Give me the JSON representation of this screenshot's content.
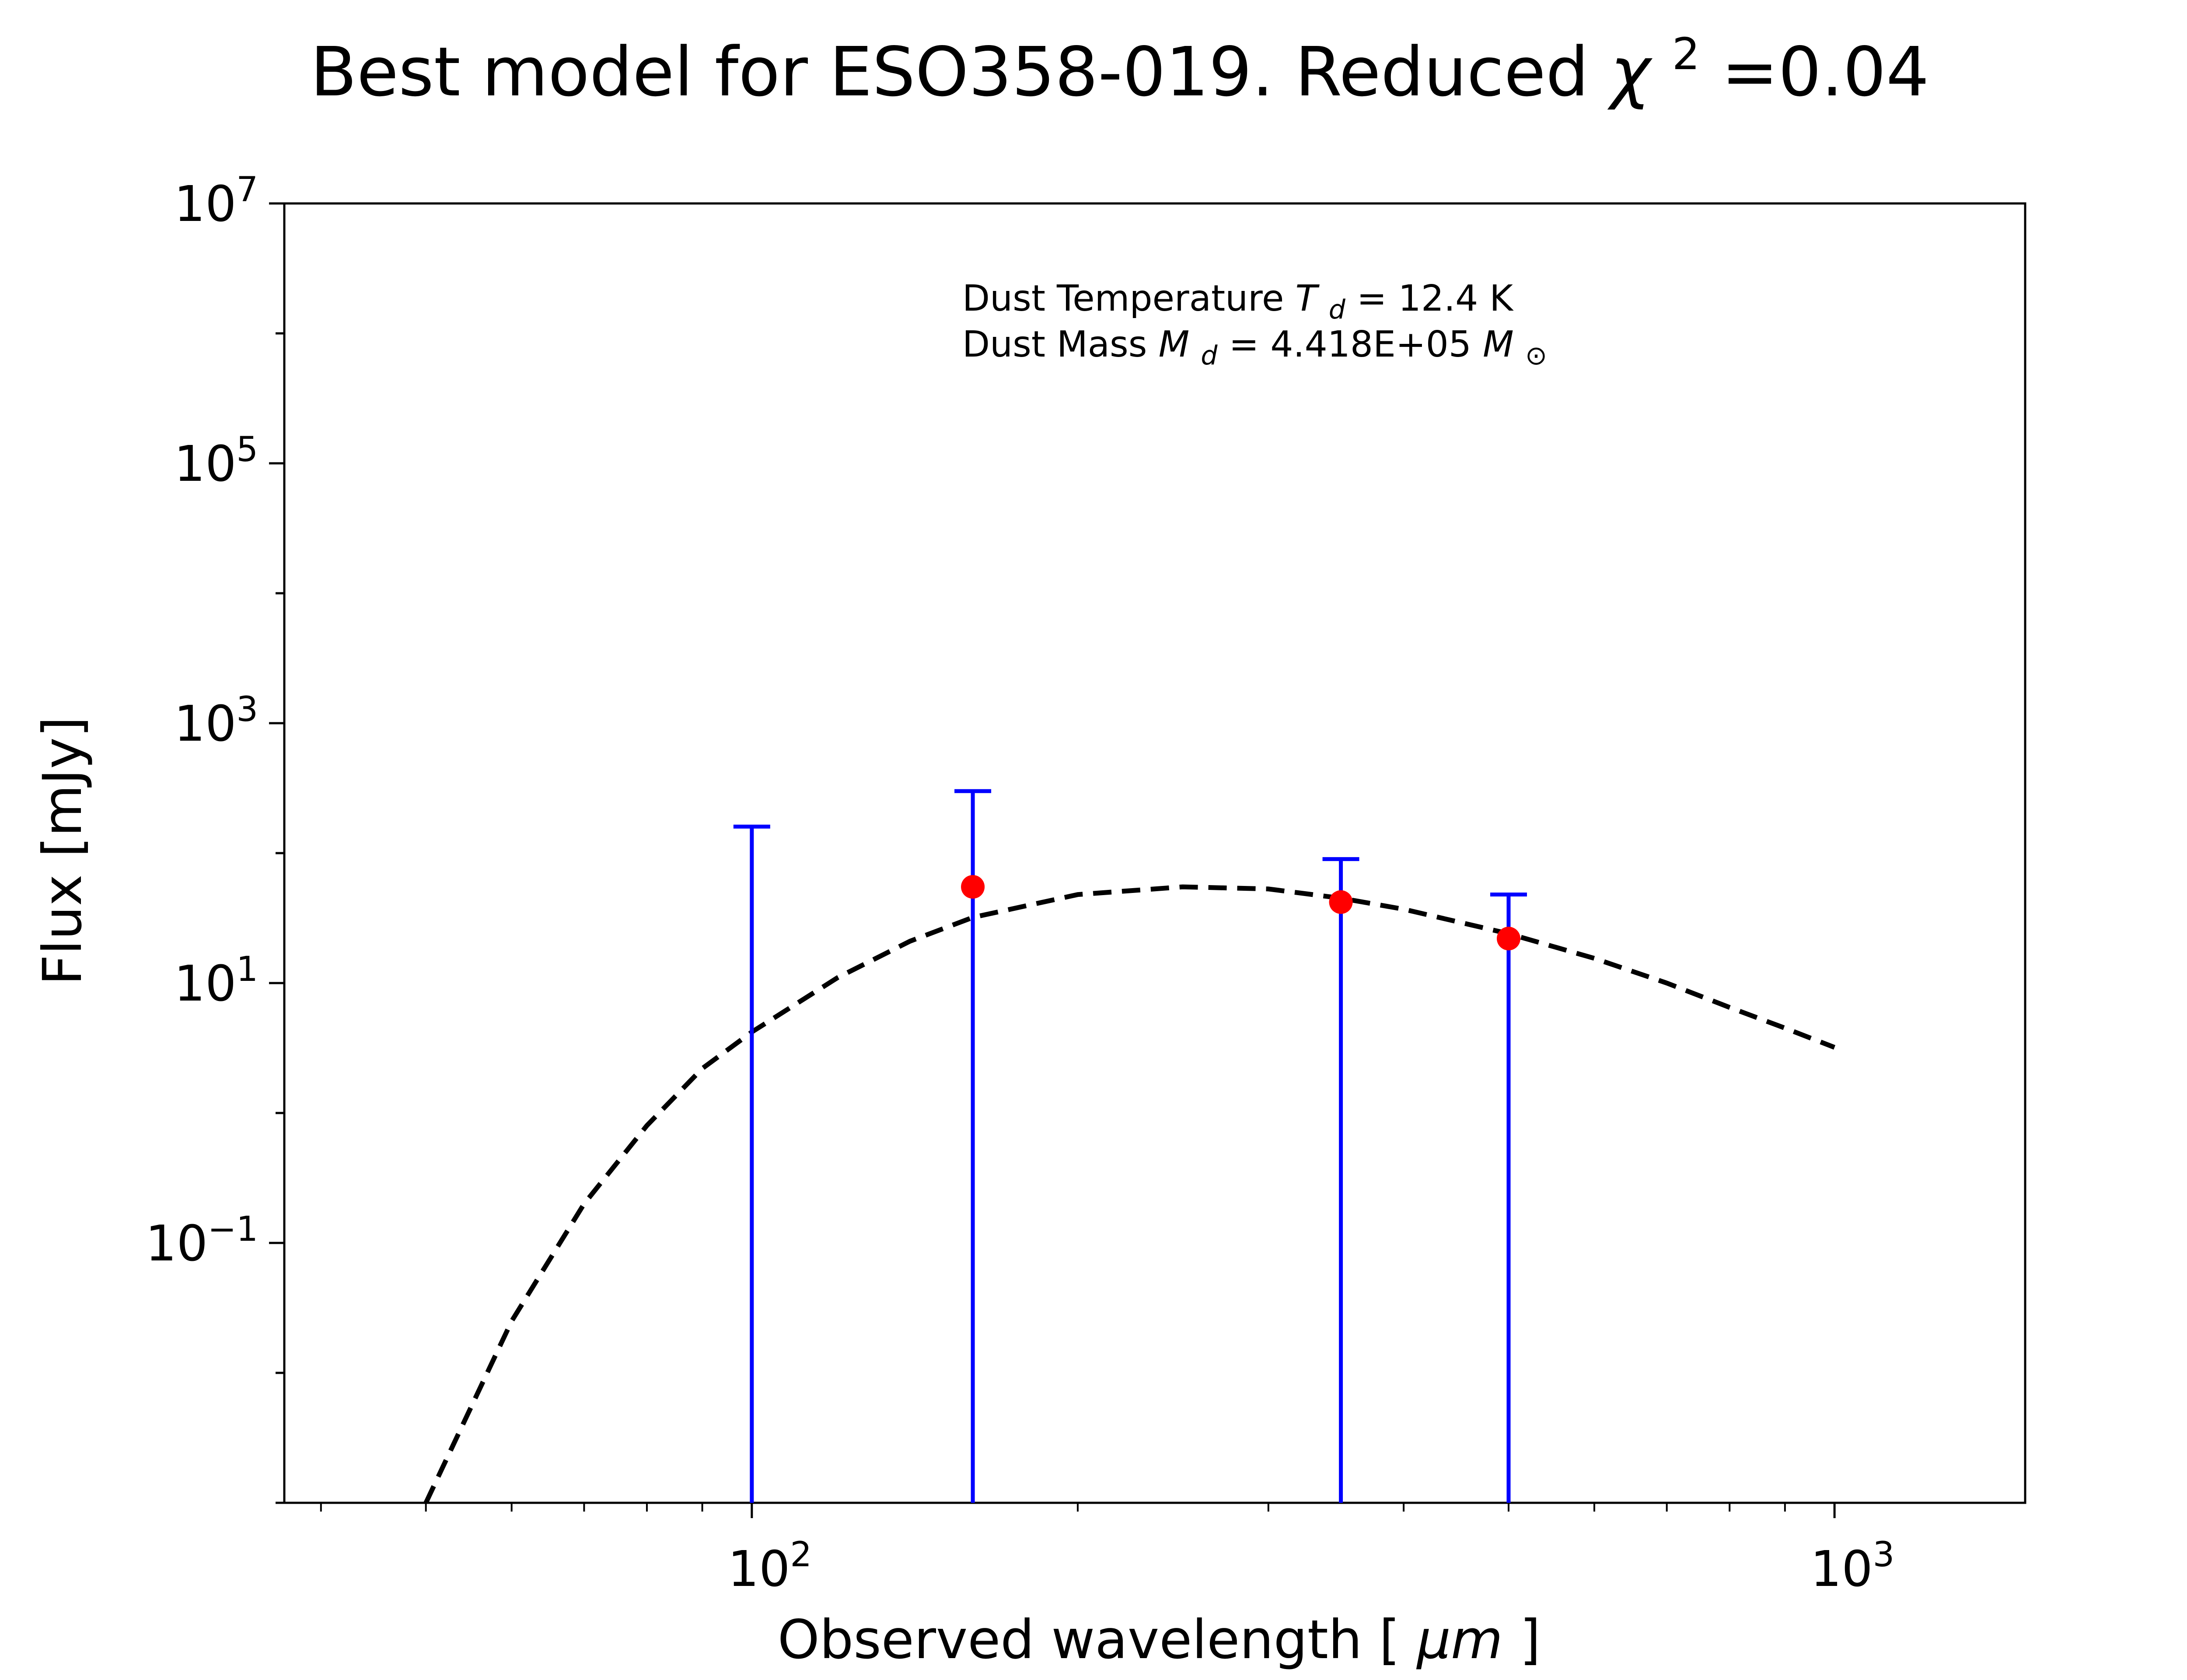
{
  "chart_data": {
    "type": "scatter",
    "title": "Best model for ESO358-019. Reduced",
    "title_symbol": "χ",
    "title_symbol_superscript": "2",
    "title_value": "=0.04",
    "xlabel": "Observed wavelength [",
    "xlabel_unit": "μm",
    "xlabel_close": "]",
    "ylabel": "Flux [mJy]",
    "xscale": "log",
    "yscale": "log",
    "xlim": [
      37,
      1500
    ],
    "ylim": [
      0.001,
      10000000
    ],
    "x_ticks": [
      {
        "base": "10",
        "exp": "2",
        "value": 100
      },
      {
        "base": "10",
        "exp": "3",
        "value": 1000
      }
    ],
    "y_ticks": [
      {
        "base": "10",
        "exp": "7",
        "value": 10000000
      },
      {
        "base": "10",
        "exp": "5",
        "value": 100000
      },
      {
        "base": "10",
        "exp": "3",
        "value": 1000
      },
      {
        "base": "10",
        "exp": "1",
        "value": 10
      },
      {
        "base": "10",
        "exp": "−1",
        "value": 0.1
      }
    ],
    "annotation": {
      "line1_prefix": "Dust Temperature ",
      "line1_symbol": "T",
      "line1_subscript": "d",
      "line1_value": " = 12.4 K",
      "line2_prefix": "Dust Mass ",
      "line2_symbol": "M",
      "line2_subscript": "d",
      "line2_value": " = 4.418E+05 ",
      "line2_unit_symbol": "M",
      "line2_unit_subscript": "⊙"
    },
    "series": [
      {
        "kind": "errorbar",
        "color": "#0000ff",
        "points": [
          {
            "x": 100,
            "y_low": 0.001,
            "y_high": 160
          },
          {
            "x": 160,
            "y_low": 0.001,
            "y_high": 300
          },
          {
            "x": 350,
            "y_low": 0.001,
            "y_high": 90
          },
          {
            "x": 500,
            "y_low": 0.001,
            "y_high": 48
          }
        ]
      },
      {
        "kind": "scatter",
        "color": "#ff0000",
        "points": [
          {
            "x": 160,
            "y": 55
          },
          {
            "x": 350,
            "y": 42
          },
          {
            "x": 500,
            "y": 22
          }
        ]
      },
      {
        "kind": "line",
        "style": "dashed",
        "color": "#000000",
        "points": [
          {
            "x": 50,
            "y": 0.001
          },
          {
            "x": 60,
            "y": 0.025
          },
          {
            "x": 70,
            "y": 0.2
          },
          {
            "x": 80,
            "y": 0.8
          },
          {
            "x": 90,
            "y": 2.2
          },
          {
            "x": 100,
            "y": 4.2
          },
          {
            "x": 120,
            "y": 11
          },
          {
            "x": 140,
            "y": 21
          },
          {
            "x": 160,
            "y": 32
          },
          {
            "x": 200,
            "y": 48
          },
          {
            "x": 250,
            "y": 55
          },
          {
            "x": 300,
            "y": 53
          },
          {
            "x": 350,
            "y": 45
          },
          {
            "x": 400,
            "y": 37
          },
          {
            "x": 500,
            "y": 24
          },
          {
            "x": 600,
            "y": 15.5
          },
          {
            "x": 700,
            "y": 10
          },
          {
            "x": 800,
            "y": 6.5
          },
          {
            "x": 900,
            "y": 4.5
          },
          {
            "x": 1000,
            "y": 3.2
          }
        ]
      }
    ]
  }
}
